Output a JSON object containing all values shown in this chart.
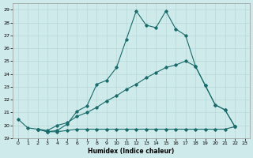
{
  "xlabel": "Humidex (Indice chaleur)",
  "xlim": [
    -0.5,
    23.5
  ],
  "ylim": [
    19,
    29.5
  ],
  "xticks": [
    0,
    1,
    2,
    3,
    4,
    5,
    6,
    7,
    8,
    9,
    10,
    11,
    12,
    13,
    14,
    15,
    16,
    17,
    18,
    19,
    20,
    21,
    22,
    23
  ],
  "yticks": [
    19,
    20,
    21,
    22,
    23,
    24,
    25,
    26,
    27,
    28,
    29
  ],
  "bg_color": "#ceeaea",
  "line_color": "#1a6b6b",
  "grid_color": "#b8d8d8",
  "line1_x": [
    0,
    1,
    2,
    3,
    4,
    5,
    6,
    7,
    8,
    9,
    10,
    11,
    12,
    13,
    14,
    15,
    16,
    17,
    18,
    19,
    20,
    21,
    22
  ],
  "line1_y": [
    20.5,
    19.8,
    19.7,
    19.5,
    19.6,
    20.1,
    21.1,
    21.5,
    23.2,
    23.5,
    24.5,
    26.7,
    28.9,
    27.8,
    27.6,
    28.9,
    27.5,
    27.0,
    24.6,
    23.1,
    21.6,
    21.2,
    19.9
  ],
  "line2_x": [
    2,
    3,
    4,
    5,
    6,
    7,
    8,
    9,
    10,
    11,
    12,
    13,
    14,
    15,
    16,
    17,
    18,
    19,
    20,
    21,
    22,
    23
  ],
  "line2_y": [
    19.7,
    19.6,
    20.0,
    20.2,
    20.7,
    21.0,
    21.4,
    21.9,
    22.3,
    22.8,
    23.2,
    23.7,
    24.1,
    24.5,
    24.7,
    25.0,
    24.6,
    23.1,
    21.6,
    21.2,
    19.9,
    null
  ],
  "line3_x": [
    2,
    3,
    4,
    5,
    6,
    7,
    8,
    9,
    10,
    11,
    12,
    13,
    14,
    15,
    16,
    17,
    18,
    19,
    20,
    21,
    22,
    23
  ],
  "line3_y": [
    19.7,
    19.5,
    19.5,
    19.6,
    19.7,
    19.7,
    19.7,
    19.7,
    19.7,
    19.7,
    19.7,
    19.7,
    19.7,
    19.7,
    19.7,
    19.7,
    19.7,
    19.7,
    19.7,
    19.7,
    19.9,
    null
  ]
}
